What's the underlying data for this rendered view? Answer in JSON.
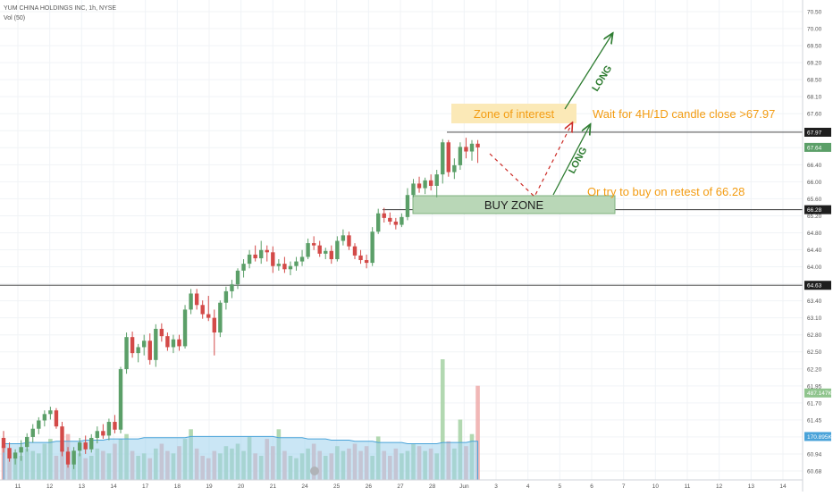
{
  "header": {
    "symbol_line": "YUM CHINA HOLDINGS INC, 1h, NYSE",
    "volume_line": "Vol (50)"
  },
  "chart_data": {
    "type": "candlestick",
    "y_axis": {
      "range": [
        60.5,
        70.7
      ],
      "ticks": [
        "70.50",
        "70.00",
        "69.50",
        "69.20",
        "68.50",
        "68.10",
        "67.60",
        "67.20",
        "66.80",
        "66.40",
        "66.00",
        "65.60",
        "65.20",
        "64.80",
        "64.40",
        "64.00",
        "63.70",
        "63.40",
        "63.10",
        "62.80",
        "62.50",
        "62.20",
        "61.95",
        "61.70",
        "61.45",
        "61.20",
        "60.94",
        "60.68"
      ]
    },
    "x_axis": {
      "labels": [
        "11",
        "12",
        "13",
        "14",
        "17",
        "18",
        "19",
        "20",
        "21",
        "24",
        "25",
        "26",
        "27",
        "28",
        "Jun",
        "3",
        "4",
        "5",
        "6",
        "7",
        "10",
        "11",
        "12",
        "13",
        "14"
      ]
    },
    "price_labels": [
      {
        "value": "67.97",
        "price": 67.97,
        "bg": "#1e1e1e",
        "fg": "#ffffff"
      },
      {
        "value": "67.64",
        "price": 67.64,
        "bg": "#5b9f68",
        "fg": "#ffffff"
      },
      {
        "value": "66.28",
        "price": 66.28,
        "bg": "#1e1e1e",
        "fg": "#ffffff"
      },
      {
        "value": "64.63",
        "price": 64.63,
        "bg": "#1e1e1e",
        "fg": "#ffffff"
      },
      {
        "value": "487.147K",
        "price": 62.28,
        "bg": "#8fc48d",
        "fg": "#ffffff"
      },
      {
        "value": "170.895K",
        "price": 61.33,
        "bg": "#4aa3d9",
        "fg": "#ffffff"
      }
    ],
    "horizontal_lines": [
      67.97,
      66.28,
      64.63
    ],
    "candles": [
      {
        "o": 61.3,
        "h": 61.45,
        "l": 60.98,
        "c": 61.08
      },
      {
        "o": 61.08,
        "h": 61.2,
        "l": 60.78,
        "c": 60.85
      },
      {
        "o": 60.85,
        "h": 61.05,
        "l": 60.72,
        "c": 60.98
      },
      {
        "o": 60.98,
        "h": 61.25,
        "l": 60.8,
        "c": 61.1
      },
      {
        "o": 61.1,
        "h": 61.4,
        "l": 61.0,
        "c": 61.32
      },
      {
        "o": 61.32,
        "h": 61.6,
        "l": 61.2,
        "c": 61.5
      },
      {
        "o": 61.5,
        "h": 61.75,
        "l": 61.38,
        "c": 61.68
      },
      {
        "o": 61.68,
        "h": 61.9,
        "l": 61.55,
        "c": 61.82
      },
      {
        "o": 61.82,
        "h": 61.98,
        "l": 61.7,
        "c": 61.9
      },
      {
        "o": 61.9,
        "h": 61.95,
        "l": 61.5,
        "c": 61.55
      },
      {
        "o": 61.55,
        "h": 61.65,
        "l": 60.9,
        "c": 61.0
      },
      {
        "o": 61.0,
        "h": 61.1,
        "l": 60.65,
        "c": 60.72
      },
      {
        "o": 60.72,
        "h": 61.1,
        "l": 60.62,
        "c": 61.02
      },
      {
        "o": 61.02,
        "h": 61.3,
        "l": 60.9,
        "c": 61.2
      },
      {
        "o": 61.2,
        "h": 61.35,
        "l": 60.95,
        "c": 61.05
      },
      {
        "o": 61.05,
        "h": 61.38,
        "l": 60.98,
        "c": 61.3
      },
      {
        "o": 61.3,
        "h": 61.55,
        "l": 61.18,
        "c": 61.45
      },
      {
        "o": 61.45,
        "h": 61.6,
        "l": 61.28,
        "c": 61.35
      },
      {
        "o": 61.35,
        "h": 61.72,
        "l": 61.25,
        "c": 61.65
      },
      {
        "o": 61.65,
        "h": 61.8,
        "l": 61.4,
        "c": 61.48
      },
      {
        "o": 61.48,
        "h": 62.85,
        "l": 61.4,
        "c": 62.8
      },
      {
        "o": 62.8,
        "h": 63.6,
        "l": 62.7,
        "c": 63.5
      },
      {
        "o": 63.5,
        "h": 63.62,
        "l": 63.05,
        "c": 63.15
      },
      {
        "o": 63.15,
        "h": 63.35,
        "l": 62.95,
        "c": 63.28
      },
      {
        "o": 63.28,
        "h": 63.55,
        "l": 63.1,
        "c": 63.42
      },
      {
        "o": 63.42,
        "h": 63.58,
        "l": 62.9,
        "c": 63.0
      },
      {
        "o": 63.0,
        "h": 63.78,
        "l": 62.85,
        "c": 63.68
      },
      {
        "o": 63.68,
        "h": 63.8,
        "l": 63.4,
        "c": 63.52
      },
      {
        "o": 63.52,
        "h": 63.6,
        "l": 63.2,
        "c": 63.28
      },
      {
        "o": 63.28,
        "h": 63.55,
        "l": 63.15,
        "c": 63.45
      },
      {
        "o": 63.45,
        "h": 63.55,
        "l": 63.2,
        "c": 63.3
      },
      {
        "o": 63.3,
        "h": 64.2,
        "l": 63.25,
        "c": 64.1
      },
      {
        "o": 64.1,
        "h": 64.55,
        "l": 64.0,
        "c": 64.45
      },
      {
        "o": 64.45,
        "h": 64.55,
        "l": 64.1,
        "c": 64.2
      },
      {
        "o": 64.2,
        "h": 64.3,
        "l": 63.9,
        "c": 64.0
      },
      {
        "o": 64.0,
        "h": 64.4,
        "l": 63.85,
        "c": 63.92
      },
      {
        "o": 63.92,
        "h": 64.1,
        "l": 63.1,
        "c": 63.6
      },
      {
        "o": 63.6,
        "h": 64.3,
        "l": 63.5,
        "c": 64.25
      },
      {
        "o": 64.25,
        "h": 64.6,
        "l": 64.1,
        "c": 64.5
      },
      {
        "o": 64.5,
        "h": 64.75,
        "l": 64.35,
        "c": 64.65
      },
      {
        "o": 64.65,
        "h": 65.0,
        "l": 64.55,
        "c": 64.95
      },
      {
        "o": 64.95,
        "h": 65.2,
        "l": 64.8,
        "c": 65.1
      },
      {
        "o": 65.1,
        "h": 65.4,
        "l": 65.0,
        "c": 65.3
      },
      {
        "o": 65.3,
        "h": 65.5,
        "l": 65.15,
        "c": 65.22
      },
      {
        "o": 65.22,
        "h": 65.6,
        "l": 65.1,
        "c": 65.4
      },
      {
        "o": 65.4,
        "h": 65.5,
        "l": 65.15,
        "c": 65.35
      },
      {
        "o": 65.35,
        "h": 65.48,
        "l": 64.9,
        "c": 65.05
      },
      {
        "o": 65.05,
        "h": 65.2,
        "l": 64.95,
        "c": 65.1
      },
      {
        "o": 65.1,
        "h": 65.25,
        "l": 64.9,
        "c": 64.98
      },
      {
        "o": 64.98,
        "h": 65.15,
        "l": 64.85,
        "c": 65.05
      },
      {
        "o": 65.05,
        "h": 65.25,
        "l": 64.95,
        "c": 65.15
      },
      {
        "o": 65.15,
        "h": 65.4,
        "l": 65.05,
        "c": 65.25
      },
      {
        "o": 65.25,
        "h": 65.65,
        "l": 65.2,
        "c": 65.55
      },
      {
        "o": 65.55,
        "h": 65.7,
        "l": 65.4,
        "c": 65.5
      },
      {
        "o": 65.5,
        "h": 65.6,
        "l": 65.25,
        "c": 65.32
      },
      {
        "o": 65.32,
        "h": 65.45,
        "l": 65.2,
        "c": 65.38
      },
      {
        "o": 65.38,
        "h": 65.5,
        "l": 65.1,
        "c": 65.2
      },
      {
        "o": 65.2,
        "h": 65.7,
        "l": 65.15,
        "c": 65.6
      },
      {
        "o": 65.6,
        "h": 65.85,
        "l": 65.5,
        "c": 65.72
      },
      {
        "o": 65.72,
        "h": 65.8,
        "l": 65.4,
        "c": 65.48
      },
      {
        "o": 65.48,
        "h": 65.55,
        "l": 65.2,
        "c": 65.28
      },
      {
        "o": 65.28,
        "h": 65.4,
        "l": 65.1,
        "c": 65.18
      },
      {
        "o": 65.18,
        "h": 65.3,
        "l": 65.0,
        "c": 65.12
      },
      {
        "o": 65.12,
        "h": 65.9,
        "l": 65.05,
        "c": 65.8
      },
      {
        "o": 65.8,
        "h": 66.3,
        "l": 65.75,
        "c": 66.2
      },
      {
        "o": 66.2,
        "h": 66.32,
        "l": 66.0,
        "c": 66.1
      },
      {
        "o": 66.1,
        "h": 66.22,
        "l": 65.95,
        "c": 66.02
      },
      {
        "o": 66.02,
        "h": 66.1,
        "l": 65.85,
        "c": 65.95
      },
      {
        "o": 65.95,
        "h": 66.2,
        "l": 65.9,
        "c": 66.12
      },
      {
        "o": 66.12,
        "h": 66.75,
        "l": 66.05,
        "c": 66.6
      },
      {
        "o": 66.6,
        "h": 66.95,
        "l": 66.55,
        "c": 66.85
      },
      {
        "o": 66.85,
        "h": 67.0,
        "l": 66.65,
        "c": 66.75
      },
      {
        "o": 66.75,
        "h": 66.98,
        "l": 66.62,
        "c": 66.92
      },
      {
        "o": 66.92,
        "h": 67.05,
        "l": 66.7,
        "c": 66.8
      },
      {
        "o": 66.8,
        "h": 67.15,
        "l": 66.55,
        "c": 67.05
      },
      {
        "o": 67.05,
        "h": 67.82,
        "l": 66.85,
        "c": 67.75
      },
      {
        "o": 67.75,
        "h": 67.8,
        "l": 67.0,
        "c": 67.1
      },
      {
        "o": 67.1,
        "h": 67.4,
        "l": 66.95,
        "c": 67.25
      },
      {
        "o": 67.25,
        "h": 67.75,
        "l": 67.15,
        "c": 67.65
      },
      {
        "o": 67.65,
        "h": 67.85,
        "l": 67.4,
        "c": 67.55
      },
      {
        "o": 67.55,
        "h": 67.8,
        "l": 67.35,
        "c": 67.72
      },
      {
        "o": 67.72,
        "h": 67.8,
        "l": 67.3,
        "c": 67.64
      }
    ],
    "volume": {
      "bars": [
        28,
        22,
        18,
        20,
        26,
        24,
        22,
        30,
        34,
        20,
        26,
        38,
        24,
        22,
        18,
        20,
        26,
        24,
        22,
        30,
        34,
        38,
        24,
        20,
        22,
        18,
        26,
        30,
        24,
        22,
        28,
        34,
        42,
        26,
        20,
        18,
        24,
        22,
        28,
        26,
        30,
        24,
        36,
        22,
        20,
        34,
        28,
        42,
        24,
        20,
        18,
        22,
        26,
        30,
        24,
        20,
        22,
        28,
        24,
        26,
        30,
        24,
        28,
        20,
        36,
        24,
        20,
        26,
        22,
        24,
        30,
        28,
        24,
        26,
        22,
        100,
        32,
        26,
        50,
        28,
        38,
        78
      ],
      "ma_line": [
        30,
        30,
        30,
        30,
        31,
        31,
        31,
        31,
        31,
        32,
        32,
        32,
        32,
        32,
        33,
        33,
        33,
        33,
        34,
        34,
        34,
        34,
        34,
        34,
        35,
        35,
        35,
        35,
        35,
        35,
        35,
        35,
        36,
        36,
        36,
        36,
        36,
        36,
        36,
        36,
        36,
        36,
        36,
        36,
        36,
        36,
        36,
        35,
        35,
        35,
        35,
        35,
        34,
        34,
        34,
        34,
        33,
        33,
        33,
        33,
        32,
        32,
        32,
        32,
        31,
        31,
        31,
        31,
        31,
        30,
        30,
        30,
        30,
        30,
        30,
        31,
        31,
        31,
        31,
        31,
        32,
        32
      ]
    },
    "annotations": {
      "zone_of_interest": "Zone of interest",
      "wait_text": "Wait for 4H/1D candle close >67.97",
      "buy_zone": "BUY ZONE",
      "retest_text": "Or try to buy on retest of 66.28",
      "long_upper": "LONG",
      "long_lower": "LONG"
    },
    "colors": {
      "up": "#5b9f68",
      "down": "#d34a48",
      "annotation_orange": "#f39c12",
      "arrow_green": "#2f7d32",
      "dashed_red": "#cc2b26",
      "zone_fill": "#fbe9b7",
      "buy_zone_fill": "#b9d7b7"
    }
  }
}
